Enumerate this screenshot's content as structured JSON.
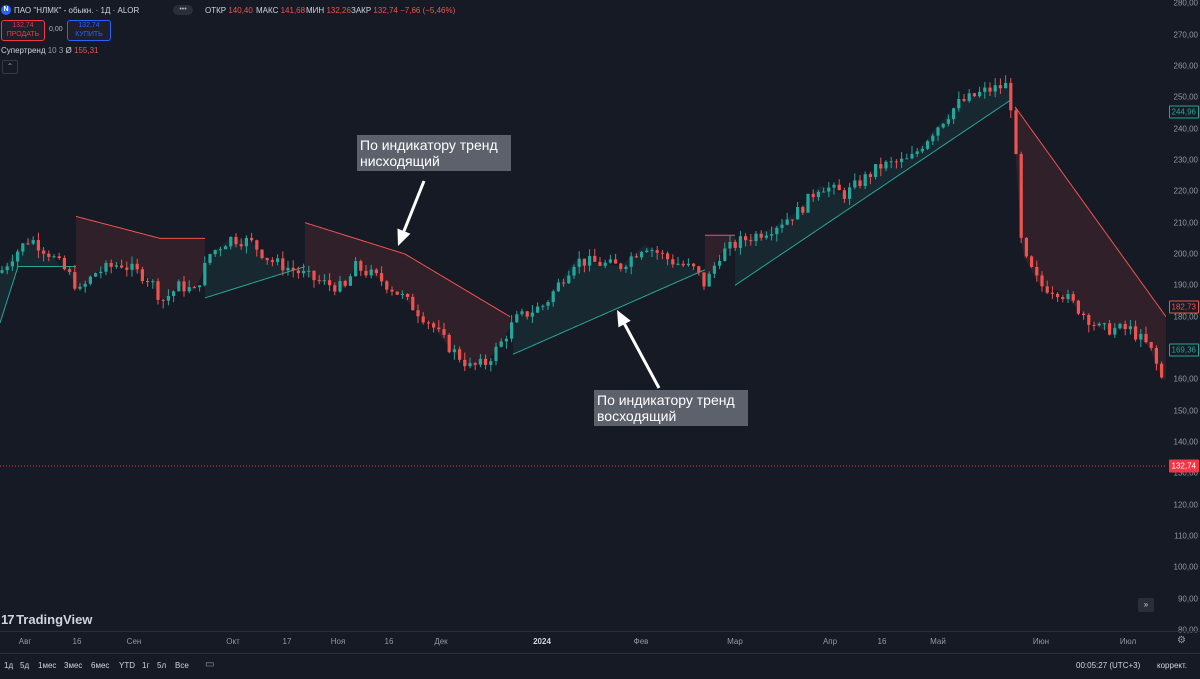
{
  "header": {
    "symbol_badge": "N",
    "symbol_title": "ПАО \"НЛМК\" - обыкн. · 1Д · ALOR",
    "ohlc": [
      {
        "label": "ОТКР",
        "value": "140,40"
      },
      {
        "label": "МАКС",
        "value": "141,68"
      },
      {
        "label": "МИН",
        "value": "132,26"
      },
      {
        "label": "ЗАКР",
        "value": "132,74"
      }
    ],
    "change": "−7,66 (−5,46%)"
  },
  "trade": {
    "sell_price": "132,74",
    "sell_label": "ПРОДАТЬ",
    "spread": "0,00",
    "buy_price": "132,74",
    "buy_label": "КУПИТЬ"
  },
  "indicator": {
    "name": "Супертренд",
    "params": "10 3",
    "value_symbol": "Ø",
    "value": "155,31"
  },
  "annotations": {
    "down": "По индикатору тренд нисходящий",
    "up": "По индикатору тренд восходящий"
  },
  "watermark": "TradingView",
  "price_axis": {
    "ticks": [
      "280,00",
      "270,00",
      "260,00",
      "250,00",
      "240,00",
      "230,00",
      "220,00",
      "210,00",
      "200,00",
      "190,00",
      "180,00",
      "170,00",
      "160,00",
      "150,00",
      "140,00",
      "130,00",
      "120,00",
      "110,00",
      "100,00",
      "90,00",
      "80,00"
    ],
    "labels": [
      {
        "text": "244,96",
        "color": "#26a69a"
      },
      {
        "text": "182,73",
        "color": "#ef5350"
      },
      {
        "text": "169,36",
        "color": "#26a69a"
      },
      {
        "text": "132,74",
        "color": "#ffffff",
        "bg": "#f23645"
      }
    ]
  },
  "time_axis": [
    "Авг",
    "16",
    "Сен",
    "Окт",
    "17",
    "Ноя",
    "16",
    "Дек",
    "2024",
    "Фев",
    "Мар",
    "Апр",
    "16",
    "Май",
    "Июн",
    "Июл"
  ],
  "bottom": {
    "ranges": [
      "1д",
      "5д",
      "1мес",
      "3мес",
      "6мес",
      "YTD",
      "1г",
      "5л",
      "Все"
    ],
    "clock": "00:05:27 (UTC+3)",
    "adjust": "коррект."
  },
  "colors": {
    "up": "#26a69a",
    "down": "#ef5350",
    "background": "#161a25",
    "last_price_line": "#f23645"
  },
  "chart_data": {
    "type": "candlestick",
    "ylim": [
      80,
      280
    ],
    "supertrend": {
      "length": 10,
      "factor": 3
    },
    "current_price": 132.74,
    "ohlc_last": {
      "open": 140.4,
      "high": 141.68,
      "low": 132.26,
      "close": 132.74
    }
  }
}
